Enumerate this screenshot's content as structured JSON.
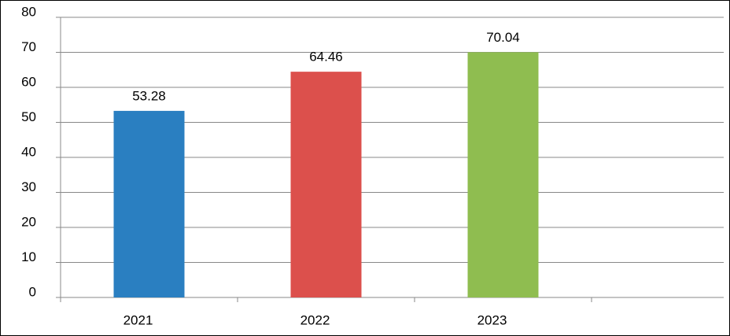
{
  "chart_data": {
    "type": "bar",
    "categories": [
      "2021",
      "2022",
      "2023",
      null
    ],
    "values": [
      53.28,
      64.46,
      70.04,
      null
    ],
    "colors": [
      "#2a7fc1",
      "#dc504c",
      "#8fbd50",
      null
    ],
    "ylim": [
      0,
      80
    ],
    "yticks": [
      0,
      10,
      20,
      30,
      40,
      50,
      60,
      70,
      80
    ],
    "grid": true
  }
}
